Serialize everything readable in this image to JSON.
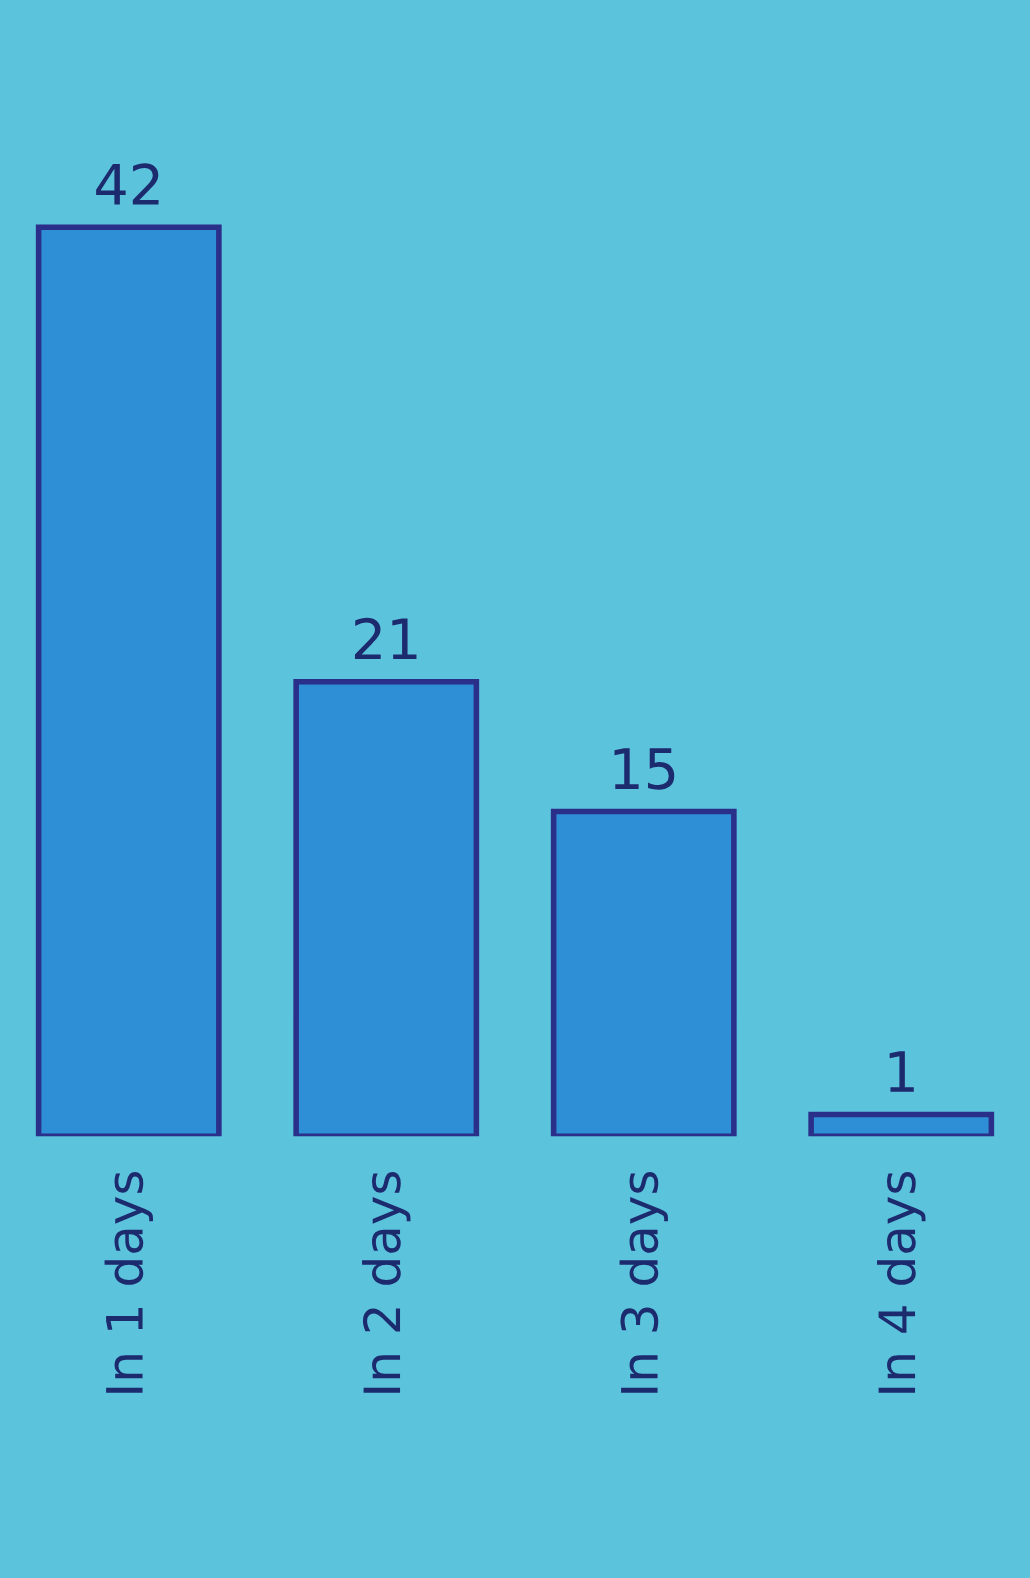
{
  "chart_data": {
    "type": "bar",
    "categories": [
      "In 1 days",
      "In 2 days",
      "In 3 days",
      "In 4 days"
    ],
    "values": [
      42,
      21,
      15,
      1
    ],
    "color": "#2f8fd6",
    "data_labels": true,
    "grid": false,
    "legend": false
  }
}
